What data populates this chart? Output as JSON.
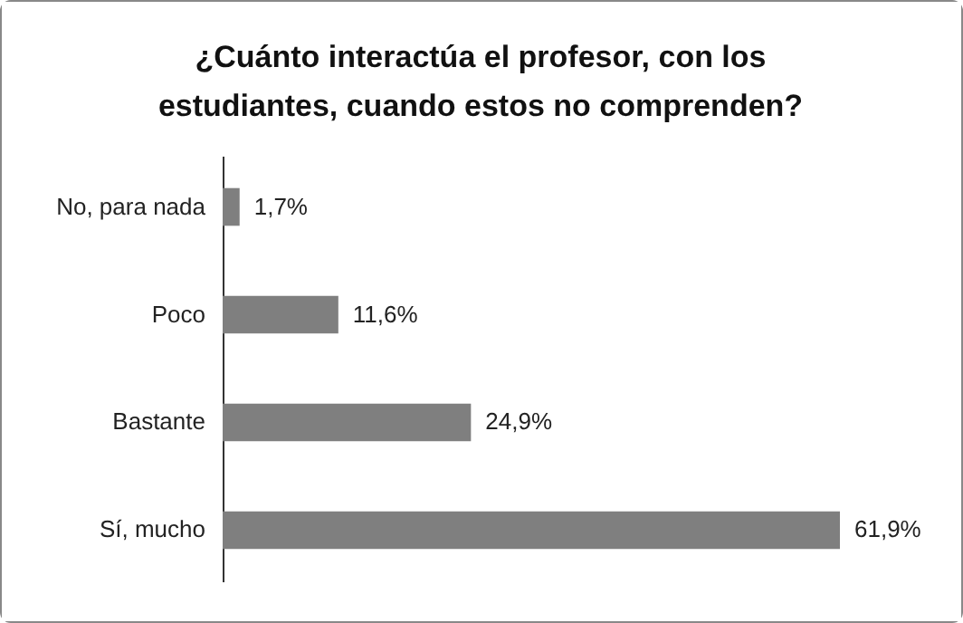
{
  "chart_data": {
    "type": "bar",
    "orientation": "horizontal",
    "title": "¿Cuánto interactúa el profesor, con los estudiantes, cuando estos no  comprenden?",
    "categories": [
      "No, para nada",
      "Poco",
      "Bastante",
      "Sí, mucho"
    ],
    "values": [
      1.7,
      11.6,
      24.9,
      61.9
    ],
    "value_labels": [
      "1,7%",
      "11,6%",
      "24,9%",
      "61,9%"
    ],
    "color": "#7f7f7f"
  }
}
